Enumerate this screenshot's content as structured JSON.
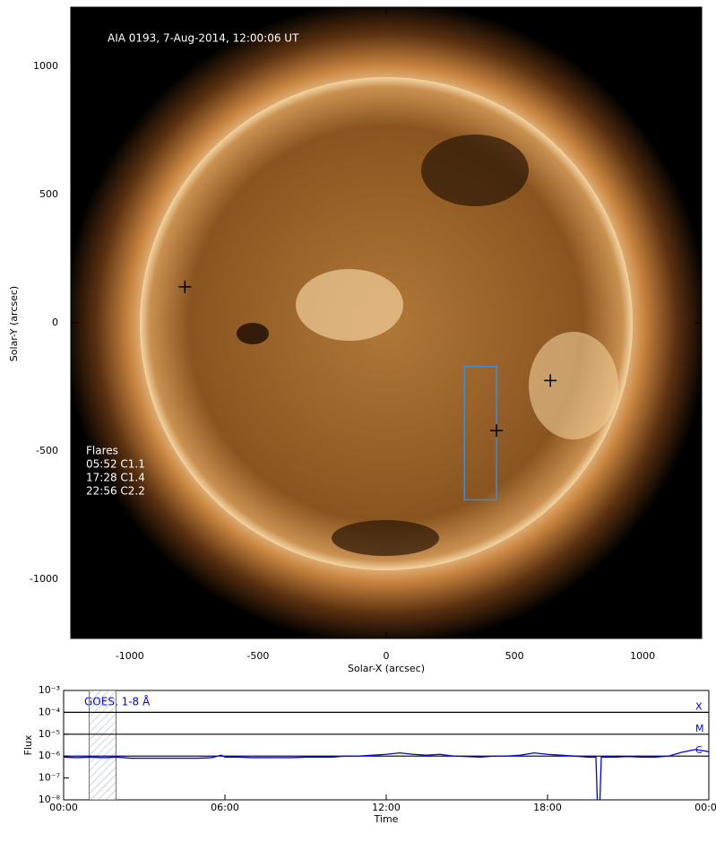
{
  "chart_data": [
    {
      "type": "scatter",
      "title": "AIA 0193, 7-Aug-2014, 12:00:06 UT",
      "xlabel": "Solar-X (arcsec)",
      "ylabel": "Solar-Y (arcsec)",
      "xlim": [
        -1230,
        1230
      ],
      "ylim": [
        -1230,
        1230
      ],
      "xticks": [
        -1000,
        -500,
        0,
        500,
        1000
      ],
      "yticks": [
        -1000,
        -500,
        0,
        500,
        1000
      ],
      "markers": {
        "x": [
          -785,
          640,
          430
        ],
        "y": [
          140,
          -225,
          -420
        ],
        "color": "#000000"
      },
      "box": {
        "x": [
          305,
          430
        ],
        "y": [
          -690,
          -170
        ],
        "color": "#3a8fd9"
      },
      "annotations": [
        "Flares",
        "05:52 C1.1",
        "17:28 C1.4",
        "22:56 C2.2"
      ]
    },
    {
      "type": "line",
      "legend": "GOES, 1-8 Å",
      "xlabel": "Time",
      "ylabel": "Flux",
      "yscale": "log",
      "xlim": [
        0,
        24
      ],
      "ylim": [
        1e-08,
        0.001
      ],
      "xticks": [
        {
          "value": 0,
          "label": "00:00"
        },
        {
          "value": 6,
          "label": "06:00"
        },
        {
          "value": 12,
          "label": "12:00"
        },
        {
          "value": 18,
          "label": "18:00"
        },
        {
          "value": 24,
          "label": "00:00"
        }
      ],
      "yticks": [
        {
          "value": 1e-08,
          "label": "10⁻⁸"
        },
        {
          "value": 1e-07,
          "label": "10⁻⁷"
        },
        {
          "value": 1e-06,
          "label": "10⁻⁶"
        },
        {
          "value": 1e-05,
          "label": "10⁻⁵"
        },
        {
          "value": 0.0001,
          "label": "10⁻⁴"
        },
        {
          "value": 0.001,
          "label": "10⁻³"
        }
      ],
      "levels": [
        {
          "label": "X",
          "value": 0.0001
        },
        {
          "label": "M",
          "value": 1e-05
        },
        {
          "label": "C",
          "value": 1e-06
        }
      ],
      "shaded_window": [
        0.95,
        1.95
      ],
      "x": [
        0,
        0.5,
        1,
        1.5,
        2,
        2.5,
        3,
        3.5,
        4,
        4.5,
        5,
        5.5,
        5.87,
        6,
        6.5,
        7,
        7.5,
        8,
        8.5,
        9,
        9.5,
        10,
        10.5,
        11,
        11.5,
        12,
        12.5,
        13,
        13.5,
        14,
        14.5,
        15,
        15.5,
        16,
        16.5,
        17,
        17.5,
        18,
        18.5,
        19,
        19.5,
        19.8,
        19.85,
        19.95,
        20,
        20.5,
        21,
        21.5,
        22,
        22.5,
        23,
        23.5,
        24
      ],
      "series": [
        {
          "name": "GOES, 1-8 Å",
          "color": "#0000ff",
          "values": [
            9e-07,
            8.5e-07,
            9e-07,
            8.5e-07,
            9e-07,
            8e-07,
            8e-07,
            8e-07,
            8e-07,
            8e-07,
            8e-07,
            8.5e-07,
            1.1e-06,
            9e-07,
            9e-07,
            8.5e-07,
            8.5e-07,
            8.5e-07,
            8.5e-07,
            9e-07,
            9e-07,
            9e-07,
            1e-06,
            1e-06,
            1.1e-06,
            1.2e-06,
            1.4e-06,
            1.2e-06,
            1.1e-06,
            1.2e-06,
            1e-06,
            9.5e-07,
            9e-07,
            1e-06,
            1e-06,
            1.1e-06,
            1.4e-06,
            1.2e-06,
            1.1e-06,
            1e-06,
            9e-07,
            9e-07,
            1e-08,
            1e-08,
            9e-07,
            9e-07,
            9.5e-07,
            9e-07,
            9e-07,
            1e-06,
            1.5e-06,
            2e-06,
            1.6e-06
          ]
        }
      ]
    }
  ]
}
